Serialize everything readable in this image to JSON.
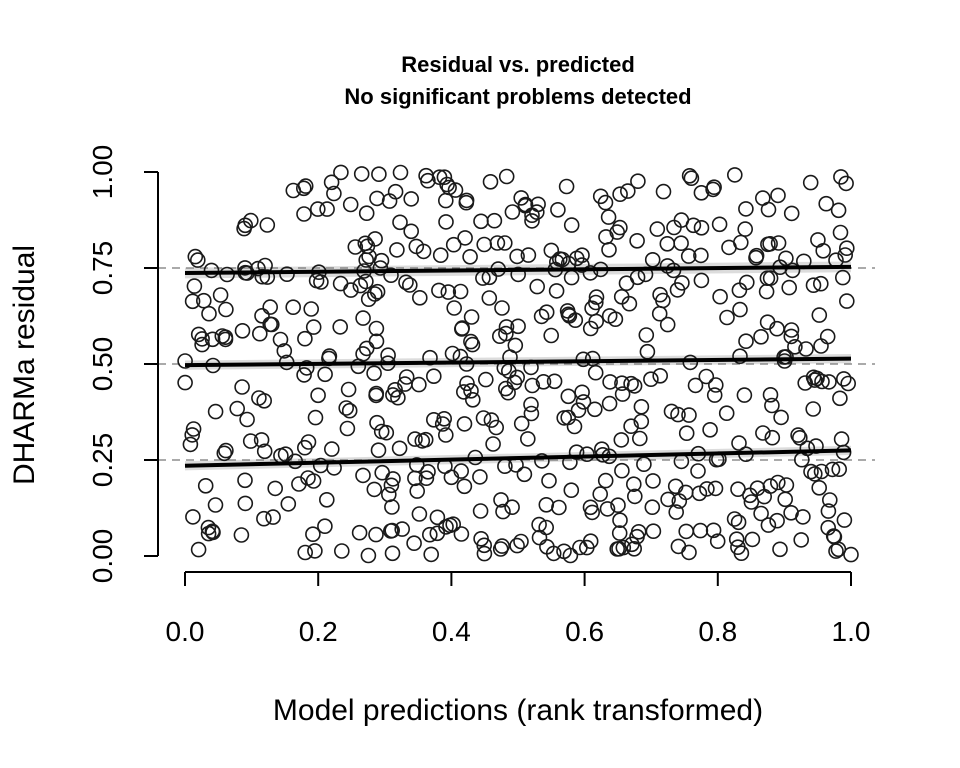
{
  "chart_data": {
    "type": "scatter",
    "title": "Residual vs. predicted",
    "subtitle": "No significant problems detected",
    "xlabel": "Model predictions (rank transformed)",
    "ylabel": "DHARMa residual",
    "xlim": [
      0,
      1
    ],
    "ylim": [
      0,
      1
    ],
    "xticks": [
      "0.0",
      "0.2",
      "0.4",
      "0.6",
      "0.8",
      "1.0"
    ],
    "yticks": [
      "0.00",
      "0.25",
      "0.50",
      "0.75",
      "1.00"
    ],
    "xtick_values": [
      0,
      0.2,
      0.4,
      0.6,
      0.8,
      1.0
    ],
    "ytick_values": [
      0,
      0.25,
      0.5,
      0.75,
      1.0
    ],
    "reference_lines": [
      0.25,
      0.5,
      0.75
    ],
    "quantile_fits": [
      {
        "quantile": 0.25,
        "x": [
          0.0,
          1.0
        ],
        "y": [
          0.235,
          0.275
        ],
        "band": 0.012
      },
      {
        "quantile": 0.5,
        "x": [
          0.0,
          1.0
        ],
        "y": [
          0.497,
          0.514
        ],
        "band": 0.012
      },
      {
        "quantile": 0.75,
        "x": [
          0.0,
          1.0
        ],
        "y": [
          0.737,
          0.753
        ],
        "band": 0.014
      }
    ],
    "grid": false,
    "point_count": 600,
    "point_seed": 12345,
    "point_style": "open-circle",
    "colors": {
      "points": "#1a1a1a",
      "lines": "#000000",
      "band": "#bfbfbf",
      "reference": "#777777"
    }
  }
}
